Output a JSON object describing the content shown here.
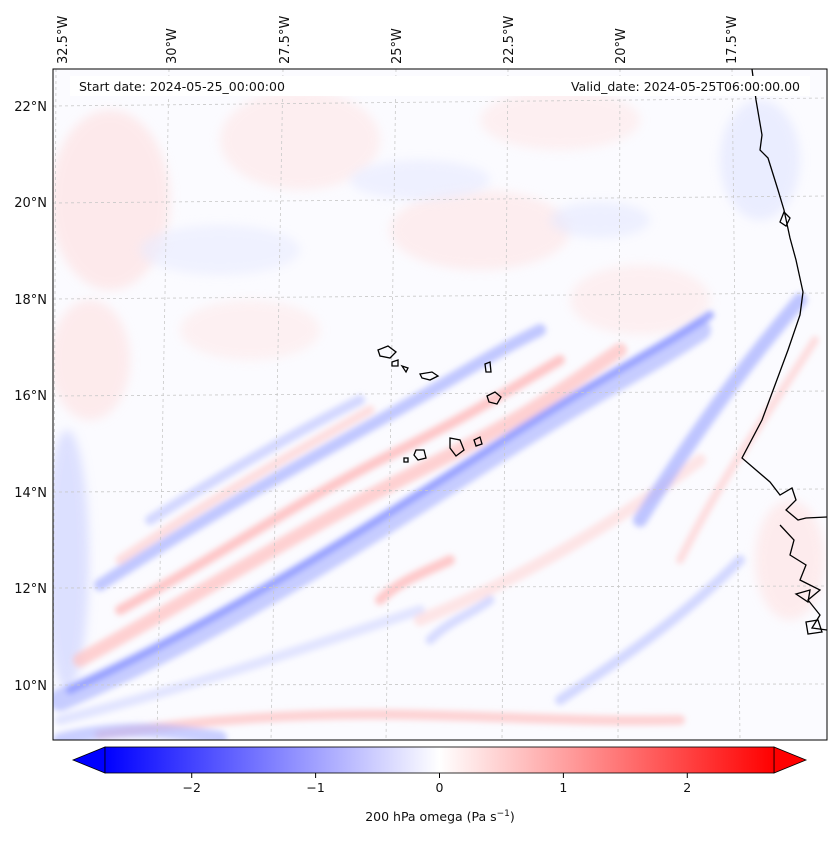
{
  "map": {
    "start_label": "Start date: 2024-05-25_00:00:00",
    "valid_label": "Valid_date: 2024-05-25T06:00:00.00",
    "lon_labels": [
      "32.5°W",
      "30°W",
      "27.5°W",
      "25°W",
      "22.5°W",
      "20°W",
      "17.5°W"
    ],
    "lat_labels": [
      "22°N",
      "20°N",
      "18°N",
      "16°N",
      "14°N",
      "12°N",
      "10°N"
    ]
  },
  "colorbar": {
    "label": "200 hPa omega (Pa s",
    "label_sup": "−1",
    "label_tail": ")",
    "ticks": [
      "−2",
      "−1",
      "0",
      "1",
      "2"
    ],
    "min": -2.7,
    "max": 2.7,
    "tick_values": [
      -2,
      -1,
      0,
      1,
      2
    ],
    "colors": {
      "negative": "#0000ff",
      "zero": "#ffffff",
      "positive": "#ff0000"
    }
  }
}
